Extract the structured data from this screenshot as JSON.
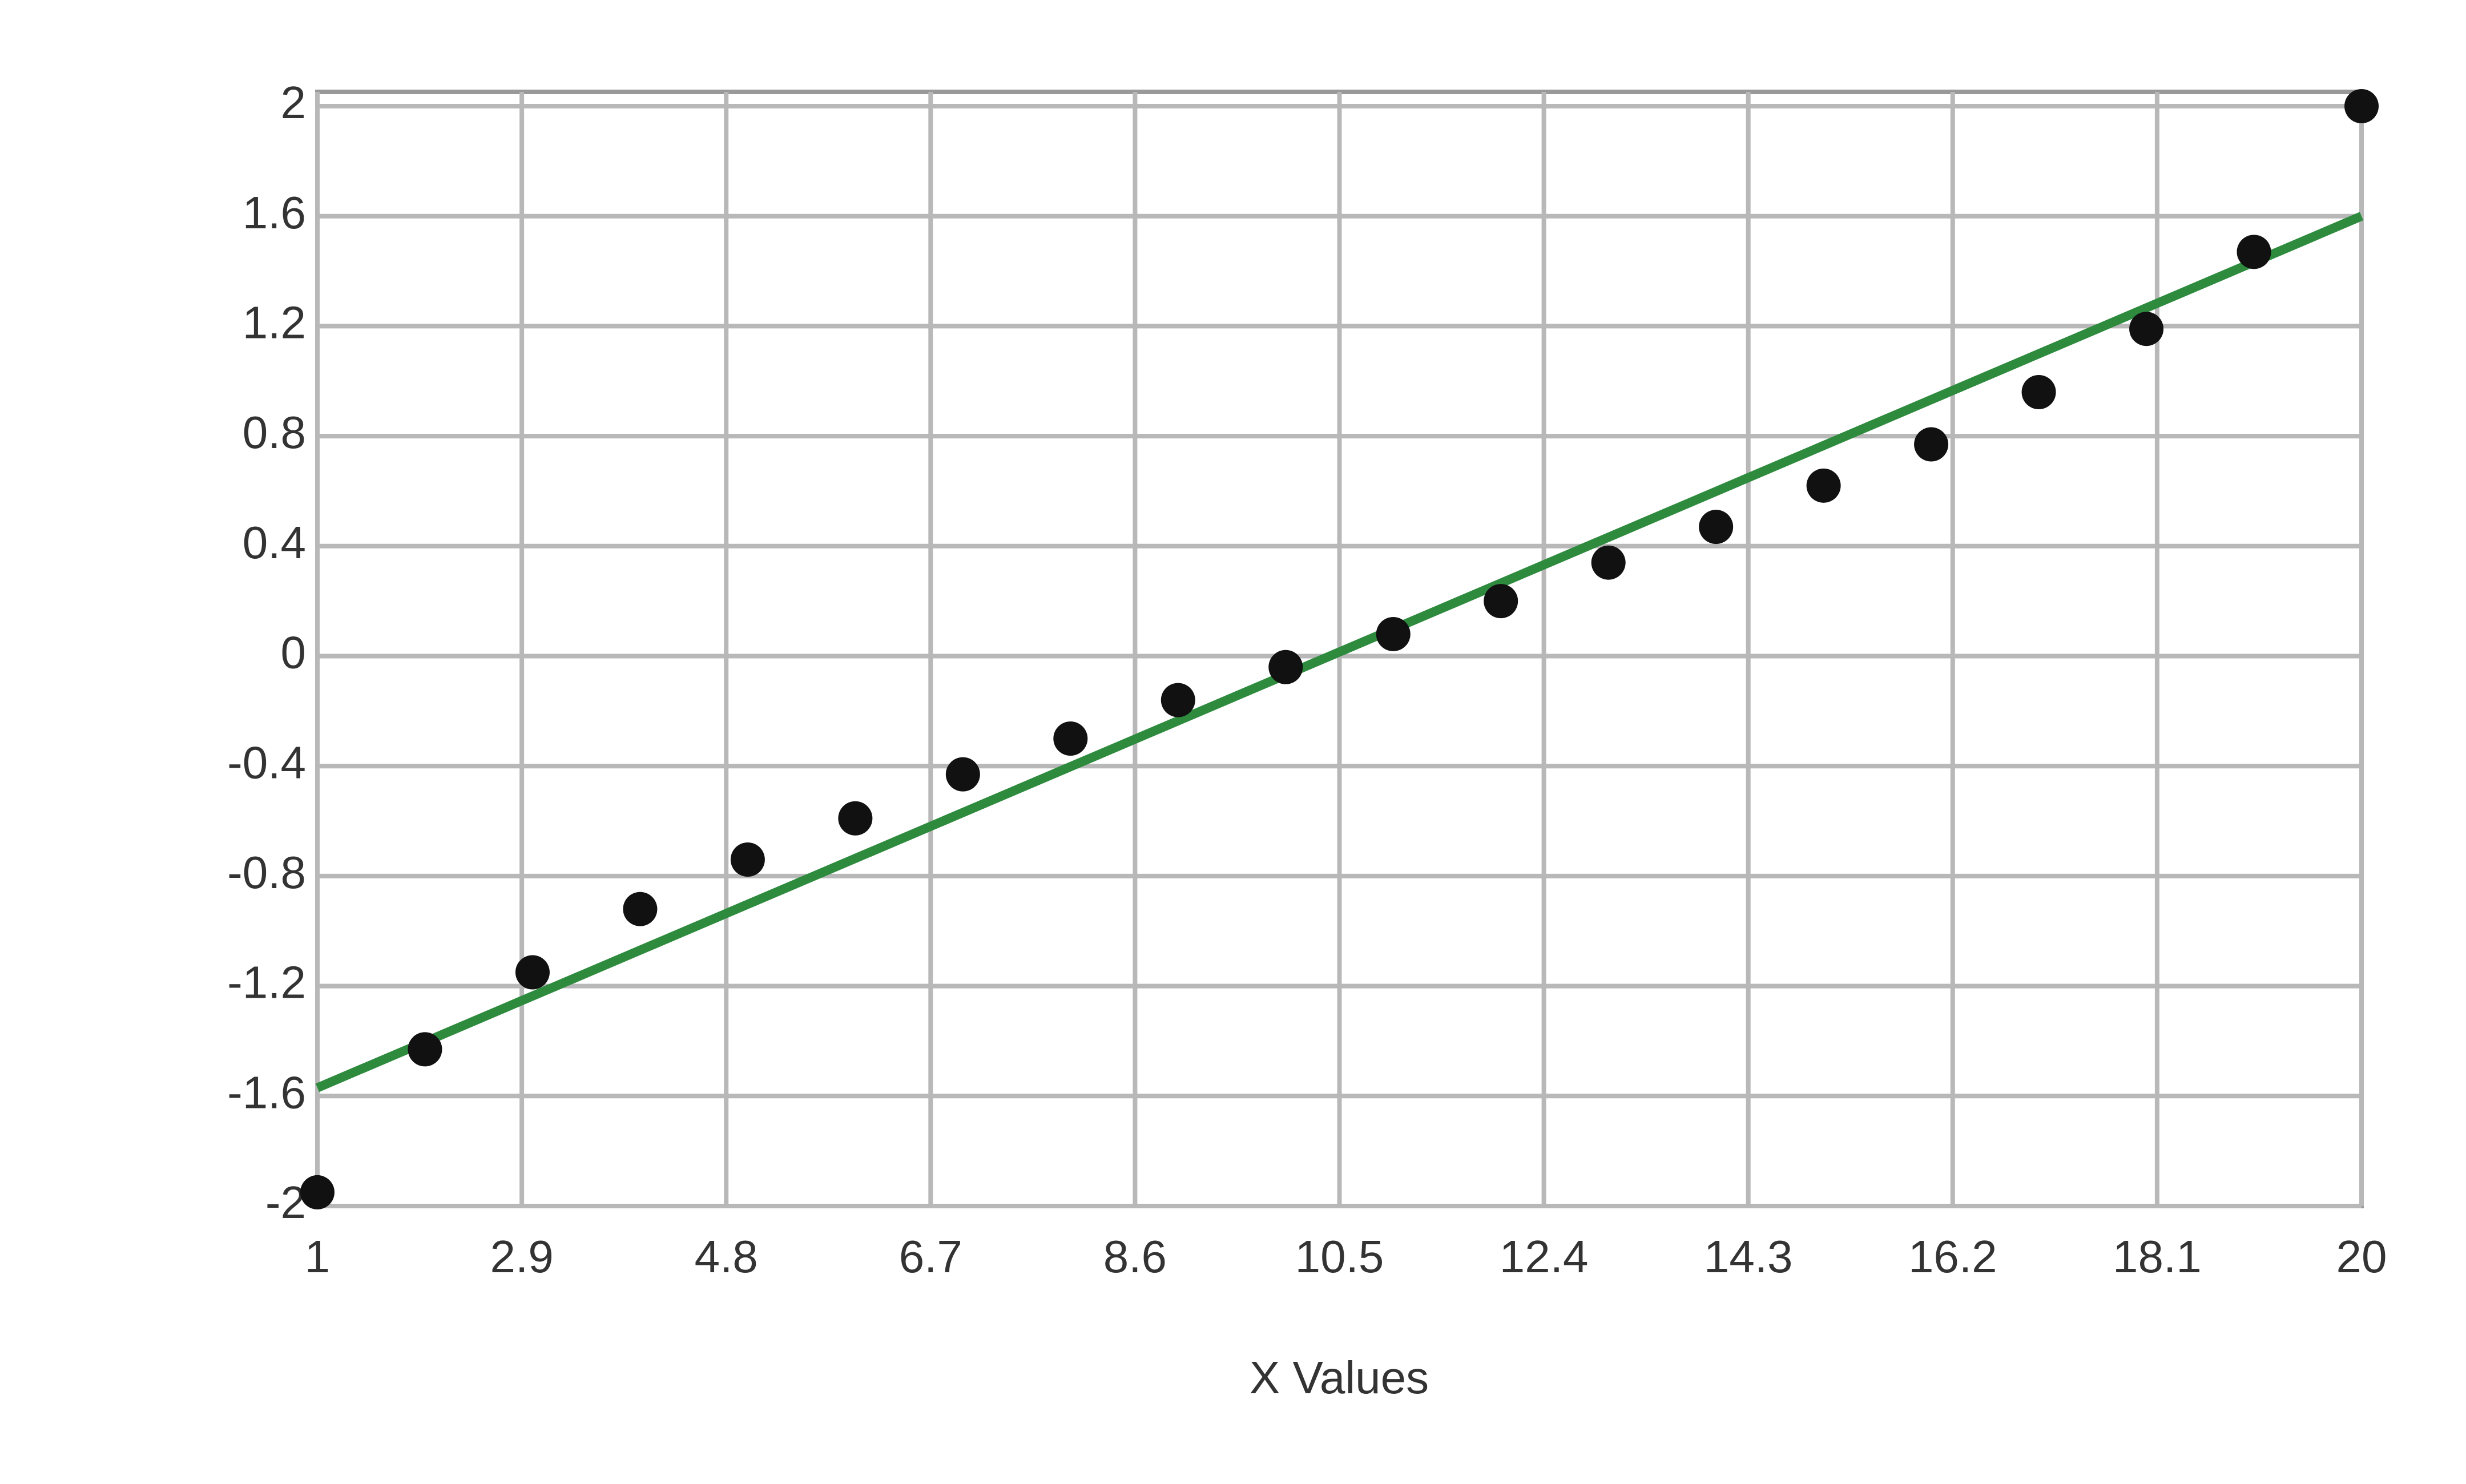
{
  "chart_data": {
    "type": "scatter",
    "x_label": "X Values",
    "series": [
      {
        "type": "scatter",
        "color": "#111111",
        "x": [
          1,
          2,
          3,
          4,
          5,
          6,
          7,
          8,
          9,
          10,
          11,
          12,
          13,
          14,
          15,
          16,
          17,
          18,
          19,
          20
        ],
        "values": [
          -1.95,
          -1.43,
          -1.15,
          -0.92,
          -0.74,
          -0.59,
          -0.43,
          -0.3,
          -0.16,
          -0.04,
          0.08,
          0.2,
          0.34,
          0.47,
          0.62,
          0.77,
          0.96,
          1.19,
          1.47,
          2.0
        ]
      },
      {
        "type": "line",
        "color": "#2e8b3e",
        "x": [
          1,
          20
        ],
        "values": [
          -1.57,
          1.6
        ]
      }
    ],
    "xlim": [
      1,
      20
    ],
    "xticks": [
      1,
      2.9,
      4.8,
      6.7,
      8.6,
      10.5,
      12.4,
      14.3,
      16.2,
      18.1,
      20
    ],
    "ylim": [
      -2,
      2
    ],
    "yticks": [
      -2,
      -1.6,
      -1.2,
      -0.8,
      -0.4,
      0,
      0.4,
      0.8,
      1.2,
      1.6,
      2
    ],
    "grid": true
  }
}
